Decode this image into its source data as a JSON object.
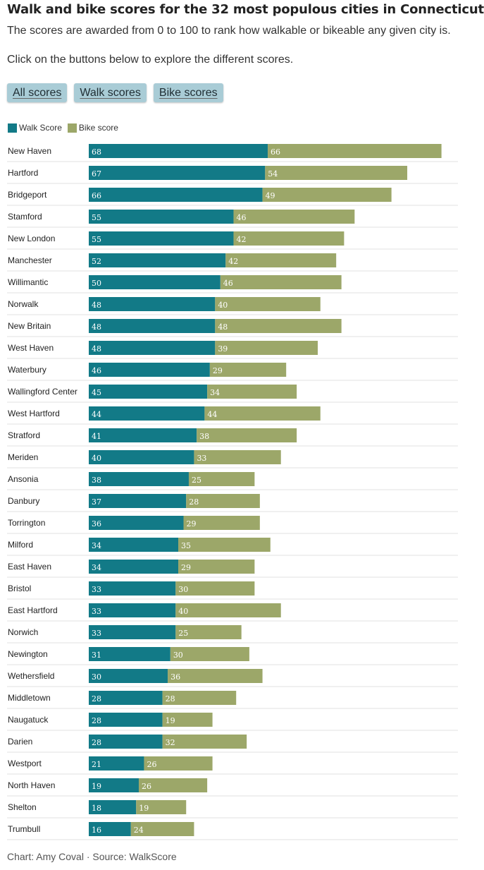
{
  "header": {
    "title": "Walk and bike scores for the 32 most populous cities in Connecticut",
    "subtitle": "The scores are awarded from 0 to 100 to rank how walkable or bikeable any given city is.",
    "instructions": "Click on the buttons below to explore the different scores."
  },
  "buttons": {
    "all": "All scores",
    "walk": "Walk scores",
    "bike": "Bike scores"
  },
  "legend": {
    "walk": "Walk Score",
    "bike": "Bike score"
  },
  "colors": {
    "walk": "#127a87",
    "bike": "#9ca769",
    "button_bg": "#a9ccd6",
    "gridline": "#e2e2e2"
  },
  "source": "Chart: Amy Coval · Source: WalkScore",
  "chart_data": {
    "type": "bar",
    "orientation": "horizontal",
    "stacked": true,
    "title": "Walk and bike scores for the 32 most populous cities in Connecticut",
    "xlim": [
      0,
      200
    ],
    "legend_position": "top-left",
    "categories": [
      "New Haven",
      "Hartford",
      "Bridgeport",
      "Stamford",
      "New London",
      "Manchester",
      "Willimantic",
      "Norwalk",
      "New Britain",
      "West Haven",
      "Waterbury",
      "Wallingford Center",
      "West Hartford",
      "Stratford",
      "Meriden",
      "Ansonia",
      "Danbury",
      "Torrington",
      "Milford",
      "East Haven",
      "Bristol",
      "East Hartford",
      "Norwich",
      "Newington",
      "Wethersfield",
      "Middletown",
      "Naugatuck",
      "Darien",
      "Westport",
      "North Haven",
      "Shelton",
      "Trumbull"
    ],
    "series": [
      {
        "name": "Walk Score",
        "values": [
          68,
          67,
          66,
          55,
          55,
          52,
          50,
          48,
          48,
          48,
          46,
          45,
          44,
          41,
          40,
          38,
          37,
          36,
          34,
          34,
          33,
          33,
          33,
          31,
          30,
          28,
          28,
          28,
          21,
          19,
          18,
          16
        ]
      },
      {
        "name": "Bike score",
        "values": [
          66,
          54,
          49,
          46,
          42,
          42,
          46,
          40,
          48,
          39,
          29,
          34,
          44,
          38,
          33,
          25,
          28,
          29,
          35,
          29,
          30,
          40,
          25,
          30,
          36,
          28,
          19,
          32,
          26,
          26,
          19,
          24
        ]
      }
    ]
  }
}
